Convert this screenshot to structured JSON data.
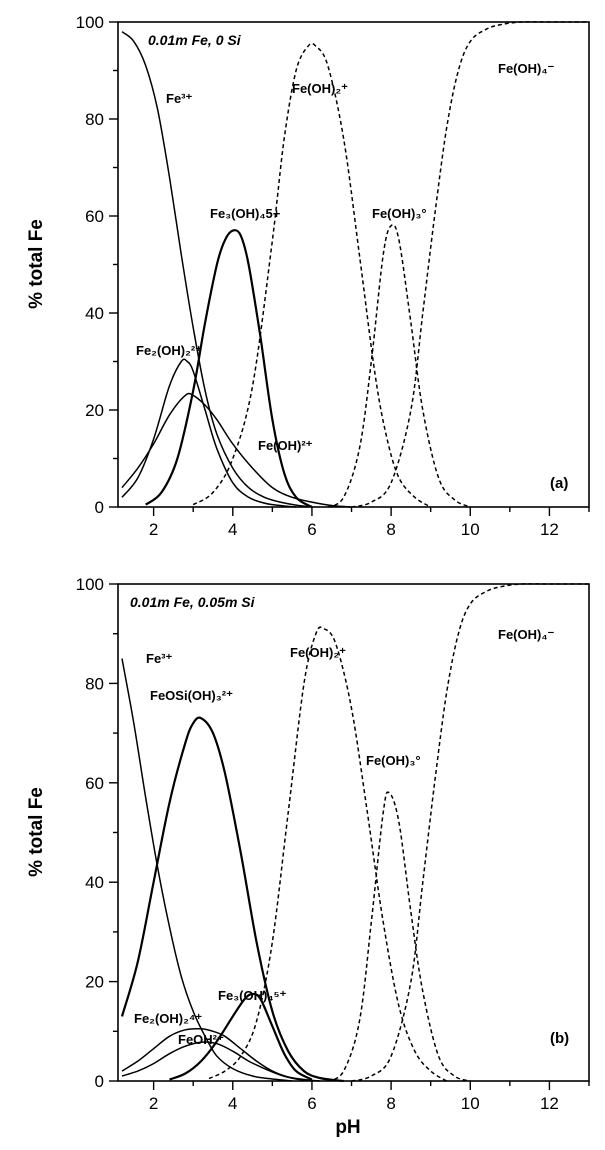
{
  "chart_data": [
    {
      "type": "line",
      "panel_label": "(a)",
      "condition": "0.01m Fe, 0 Si",
      "ylabel": "% total Fe",
      "xlabel": "",
      "xlim": [
        1.1,
        13
      ],
      "ylim": [
        0,
        100
      ],
      "x_ticks": [
        "2",
        "4",
        "6",
        "8",
        "10",
        "12"
      ],
      "y_ticks": [
        "0",
        "20",
        "40",
        "60",
        "80",
        "100"
      ],
      "series": [
        {
          "name": "Fe3+",
          "style": "solid",
          "x": [
            1.2,
            1.5,
            1.8,
            2.1,
            2.4,
            2.7,
            3.0,
            3.3,
            3.6,
            4.0,
            4.4,
            4.8,
            5.2,
            5.6,
            6.0
          ],
          "y": [
            98,
            96,
            91,
            82,
            68,
            52,
            37,
            24,
            15,
            8,
            4,
            2,
            1,
            0.4,
            0
          ]
        },
        {
          "name": "Fe2(OH)2 2+",
          "style": "solid",
          "x": [
            1.2,
            1.6,
            2.0,
            2.4,
            2.7,
            2.85,
            3.0,
            3.3,
            3.6,
            4.0,
            4.4,
            4.8,
            5.2,
            5.6
          ],
          "y": [
            2,
            6,
            14,
            25,
            30,
            30,
            28,
            20,
            12,
            5,
            2,
            0.8,
            0.3,
            0
          ]
        },
        {
          "name": "Fe(OH)2+",
          "style": "solid",
          "x": [
            1.2,
            1.6,
            2.0,
            2.4,
            2.8,
            3.0,
            3.3,
            3.6,
            4.0,
            4.5,
            5.0,
            5.5,
            6.0,
            6.5,
            7.0
          ],
          "y": [
            4,
            8,
            13,
            19,
            23,
            23,
            21,
            18,
            13,
            8,
            4,
            2,
            1,
            0.3,
            0
          ]
        },
        {
          "name": "Fe3(OH)4 5+",
          "style": "solid",
          "x": [
            1.8,
            2.2,
            2.6,
            3.0,
            3.3,
            3.6,
            3.8,
            4.0,
            4.2,
            4.4,
            4.7,
            5.0,
            5.3,
            5.6,
            6.0
          ],
          "y": [
            0.5,
            3,
            10,
            24,
            38,
            50,
            55,
            57,
            56,
            50,
            35,
            18,
            7,
            2,
            0
          ]
        },
        {
          "name": "Fe(OH)2+ dihydroxo",
          "style": "dashed",
          "x": [
            3.0,
            3.5,
            4.0,
            4.5,
            5.0,
            5.3,
            5.6,
            5.9,
            6.1,
            6.4,
            6.8,
            7.2,
            7.6,
            7.9,
            8.2,
            8.6,
            9.0
          ],
          "y": [
            0.5,
            3,
            10,
            25,
            55,
            76,
            90,
            95,
            95,
            91,
            76,
            52,
            27,
            14,
            6,
            2,
            0
          ]
        },
        {
          "name": "Fe(OH)3°",
          "style": "dashed",
          "x": [
            6.4,
            6.8,
            7.2,
            7.5,
            7.8,
            8.0,
            8.2,
            8.5,
            8.8,
            9.2,
            9.6,
            10.0
          ],
          "y": [
            0,
            2,
            12,
            30,
            52,
            58,
            55,
            38,
            20,
            6,
            1.5,
            0
          ]
        },
        {
          "name": "Fe(OH)4-",
          "style": "dashed",
          "x": [
            7.0,
            7.5,
            8.0,
            8.5,
            8.8,
            9.1,
            9.4,
            9.7,
            10.0,
            10.4,
            10.8,
            11.3,
            12.0,
            13.0
          ],
          "y": [
            0,
            1,
            5,
            20,
            40,
            60,
            78,
            90,
            96,
            98.5,
            99.5,
            100,
            100,
            100
          ]
        }
      ],
      "labels": {
        "fe3": "Fe³⁺",
        "fe2oh2": "Fe₂(OH)₂²⁺",
        "feoh": "Fe(OH)²⁺",
        "fe3oh4": "Fe₃(OH)₄5+",
        "feoh2": "Fe(OH)₂⁺",
        "feoh3": "Fe(OH)₃°",
        "feoh4": "Fe(OH)₄⁻"
      }
    },
    {
      "type": "line",
      "panel_label": "(b)",
      "condition": "0.01m Fe, 0.05m Si",
      "ylabel": "% total Fe",
      "xlabel": "pH",
      "xlim": [
        1.1,
        13
      ],
      "ylim": [
        0,
        100
      ],
      "x_ticks": [
        "2",
        "4",
        "6",
        "8",
        "10",
        "12"
      ],
      "y_ticks": [
        "0",
        "20",
        "40",
        "60",
        "80",
        "100"
      ],
      "series": [
        {
          "name": "Fe3+",
          "style": "solid",
          "x": [
            1.2,
            1.5,
            1.8,
            2.1,
            2.4,
            2.7,
            3.0,
            3.3,
            3.6,
            4.0,
            4.5,
            5.0,
            5.5
          ],
          "y": [
            85,
            72,
            57,
            43,
            31,
            21,
            14,
            9,
            5,
            2.5,
            1,
            0.4,
            0
          ]
        },
        {
          "name": "FeOSi(OH)3 2+",
          "style": "solid",
          "x": [
            1.2,
            1.6,
            2.0,
            2.4,
            2.8,
            3.0,
            3.2,
            3.5,
            3.8,
            4.2,
            4.6,
            5.0,
            5.4,
            5.8,
            6.2,
            6.8
          ],
          "y": [
            13,
            24,
            40,
            56,
            68,
            72,
            73,
            70,
            62,
            46,
            28,
            14,
            6,
            2,
            0.6,
            0
          ]
        },
        {
          "name": "Fe2(OH)2 4+",
          "style": "solid",
          "x": [
            1.2,
            1.6,
            2.0,
            2.4,
            2.8,
            3.2,
            3.5,
            3.8,
            4.2,
            4.6,
            5.0,
            5.4,
            5.8,
            6.2
          ],
          "y": [
            2,
            4,
            6.5,
            9,
            10.3,
            10.5,
            10,
            9,
            6.5,
            4,
            2,
            0.8,
            0.3,
            0
          ]
        },
        {
          "name": "FeOH2+",
          "style": "solid",
          "x": [
            1.2,
            1.6,
            2.0,
            2.4,
            2.8,
            3.2,
            3.6,
            4.0,
            4.4,
            4.8,
            5.2,
            5.6,
            6.0
          ],
          "y": [
            1,
            2,
            3.5,
            5.5,
            7,
            7.8,
            7.5,
            6,
            4,
            2.5,
            1.2,
            0.4,
            0
          ]
        },
        {
          "name": "Fe3(OH)4 5+",
          "style": "solid",
          "x": [
            2.4,
            2.8,
            3.2,
            3.6,
            4.0,
            4.3,
            4.5,
            4.7,
            5.0,
            5.3,
            5.6,
            6.0
          ],
          "y": [
            0.3,
            1.5,
            4,
            8,
            13,
            16.5,
            17.5,
            16.5,
            11,
            5.5,
            2,
            0.3
          ]
        },
        {
          "name": "Fe(OH)2+ dihydroxo",
          "style": "dashed",
          "x": [
            3.4,
            3.8,
            4.2,
            4.6,
            5.0,
            5.4,
            5.8,
            6.1,
            6.3,
            6.6,
            7.0,
            7.4,
            7.8,
            8.2,
            8.6,
            9.0,
            9.4
          ],
          "y": [
            0.5,
            2,
            5,
            12,
            28,
            54,
            80,
            90,
            91,
            88,
            75,
            54,
            32,
            15,
            6,
            2,
            0
          ]
        },
        {
          "name": "Fe(OH)3°",
          "style": "dashed",
          "x": [
            6.4,
            6.8,
            7.2,
            7.5,
            7.8,
            7.95,
            8.2,
            8.5,
            8.8,
            9.2,
            9.6,
            10.0
          ],
          "y": [
            0,
            2,
            12,
            32,
            54,
            58,
            52,
            34,
            18,
            5,
            1,
            0
          ]
        },
        {
          "name": "Fe(OH)4-",
          "style": "dashed",
          "x": [
            7.0,
            7.5,
            8.0,
            8.5,
            8.8,
            9.1,
            9.4,
            9.7,
            10.0,
            10.4,
            10.8,
            11.3,
            12.0,
            13.0
          ],
          "y": [
            0,
            1,
            5,
            20,
            40,
            60,
            78,
            90,
            96,
            98.5,
            99.5,
            100,
            100,
            100
          ]
        }
      ],
      "labels": {
        "fe3": "Fe³⁺",
        "feosi": "FeOSi(OH)₃²⁺",
        "fe2oh2": "Fe₂(OH)₂⁴⁺",
        "feoh": "FeOH²⁺",
        "fe3oh4": "Fe₃(OH)₄⁵⁺",
        "feoh2": "Fe(OH)₂⁺",
        "feoh3": "Fe(OH)₃°",
        "feoh4": "Fe(OH)₄⁻"
      }
    }
  ]
}
